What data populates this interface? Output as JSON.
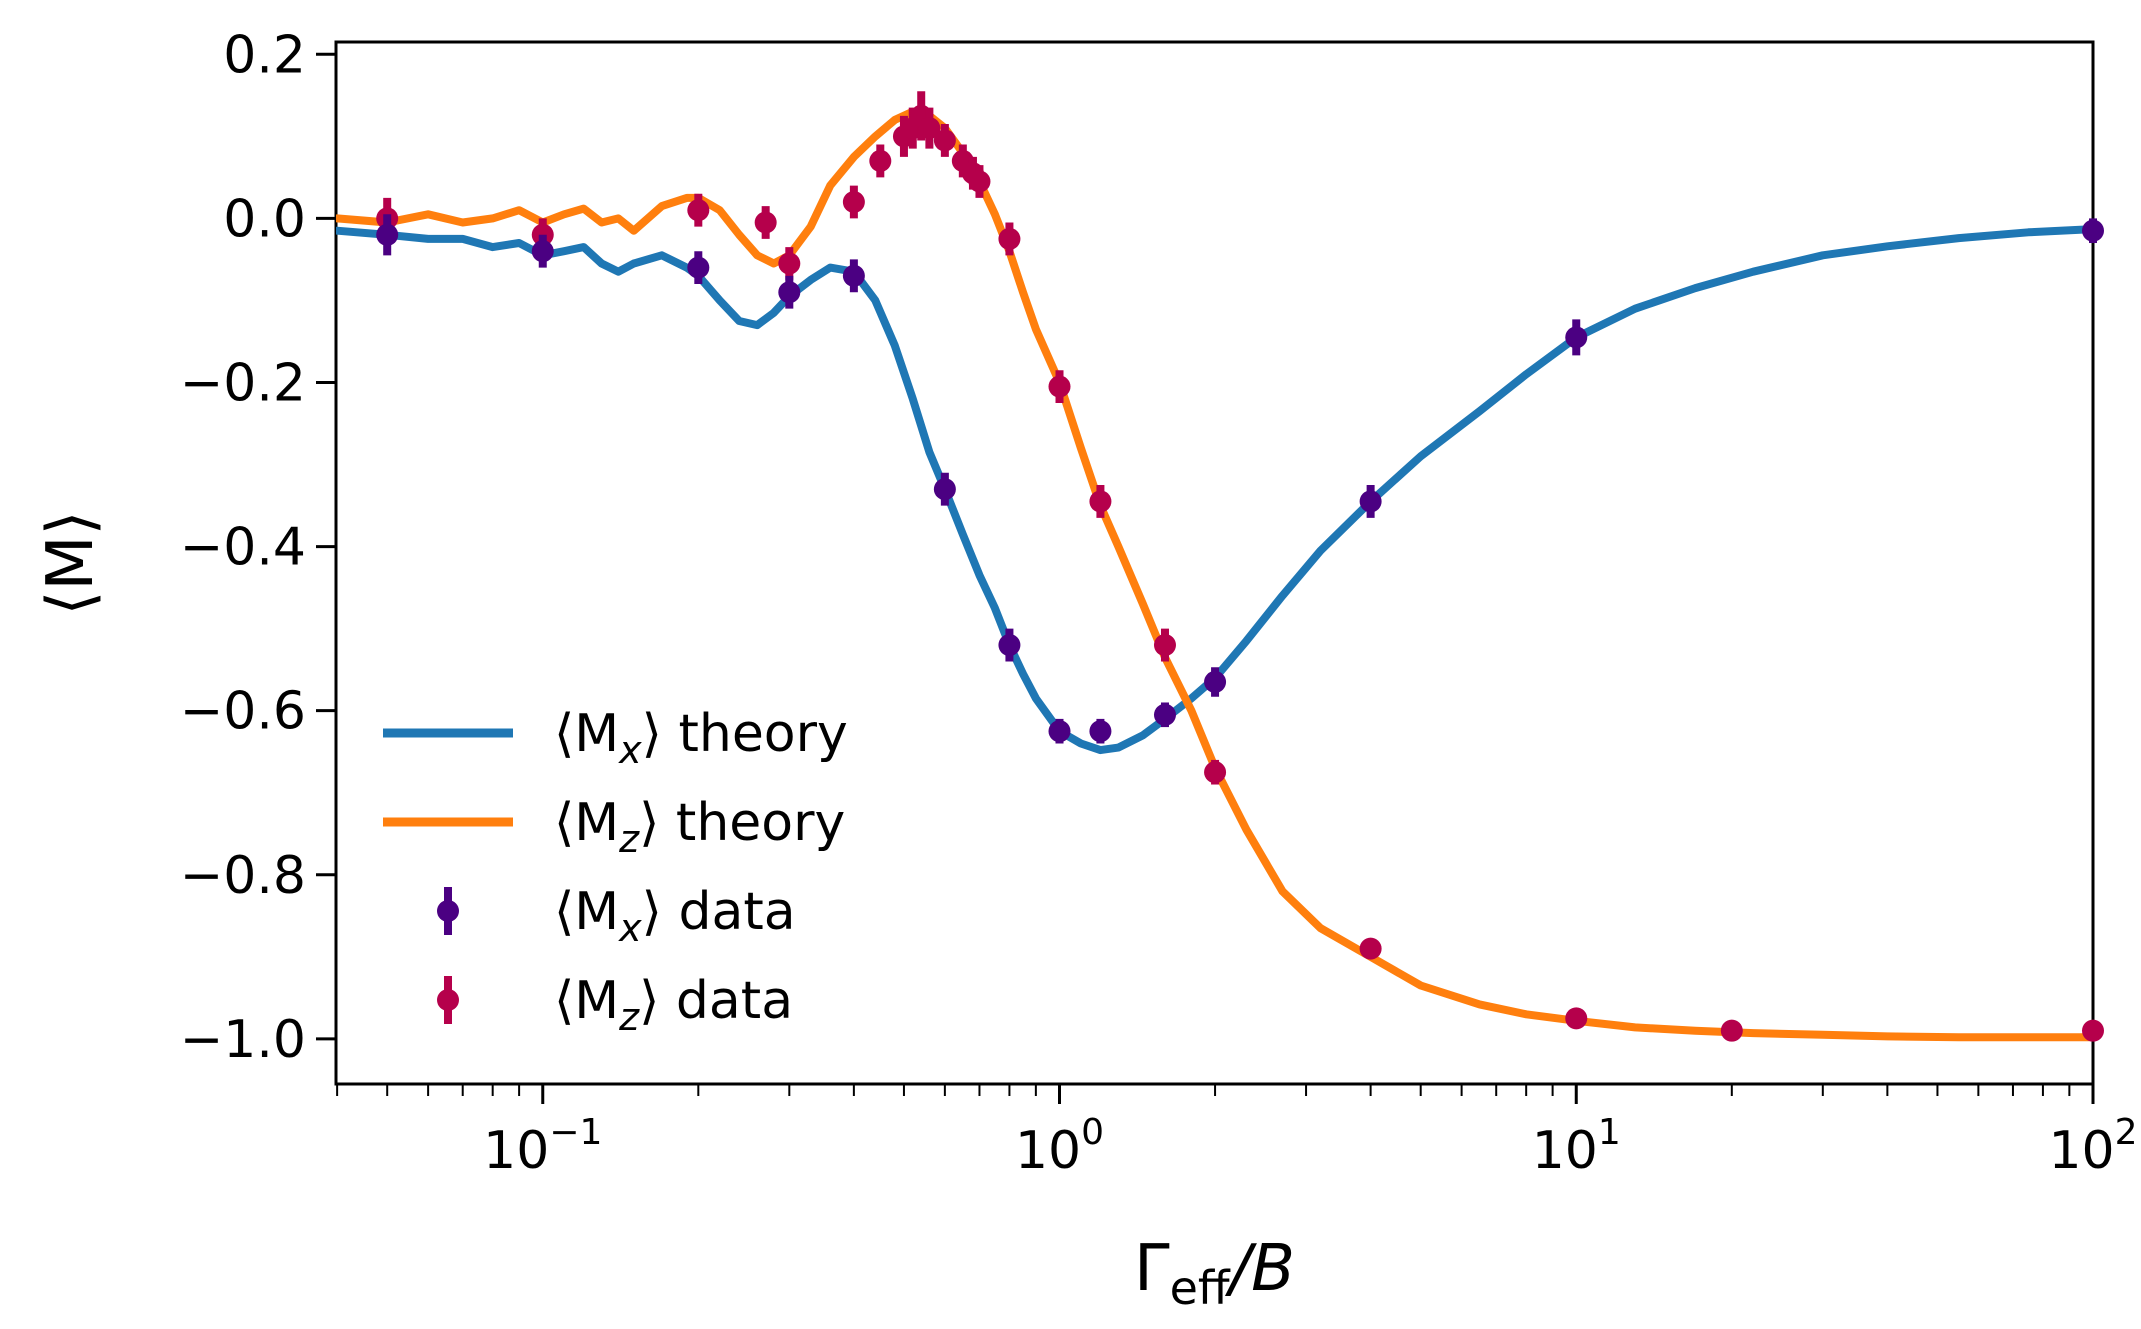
{
  "chart_data": {
    "type": "line",
    "xscale": "log",
    "xlim": [
      0.0398,
      100
    ],
    "ylim": [
      -1.055,
      0.215
    ],
    "xlabel": {
      "main": "Γ",
      "sub": "eff",
      "tail": "/B"
    },
    "ylabel": "⟨M⟩",
    "x_ticks": [
      {
        "base": "10",
        "exp": "−1",
        "value": 0.1
      },
      {
        "base": "10",
        "exp": "0",
        "value": 1
      },
      {
        "base": "10",
        "exp": "1",
        "value": 10
      },
      {
        "base": "10",
        "exp": "2",
        "value": 100
      }
    ],
    "y_ticks": [
      {
        "label": "0.2",
        "value": 0.2
      },
      {
        "label": "0.0",
        "value": 0.0
      },
      {
        "label": "−0.2",
        "value": -0.2
      },
      {
        "label": "−0.4",
        "value": -0.4
      },
      {
        "label": "−0.6",
        "value": -0.6
      },
      {
        "label": "−0.8",
        "value": -0.8
      },
      {
        "label": "−1.0",
        "value": -1.0
      }
    ],
    "grid": false,
    "legend_position": "lower-left",
    "colors": {
      "mx_theory": "#1f77b4",
      "mz_theory": "#ff7f0e",
      "mx_data": "#4b0082",
      "mz_data": "#b5004b"
    },
    "series": [
      {
        "name": "⟨M_x⟩ theory",
        "legend": {
          "pre": "⟨M",
          "sub": "x",
          "post": "⟩ theory"
        },
        "kind": "line",
        "x": [
          0.04,
          0.05,
          0.06,
          0.07,
          0.08,
          0.09,
          0.1,
          0.11,
          0.12,
          0.13,
          0.14,
          0.15,
          0.17,
          0.19,
          0.2,
          0.22,
          0.24,
          0.26,
          0.28,
          0.3,
          0.33,
          0.36,
          0.4,
          0.44,
          0.48,
          0.52,
          0.56,
          0.6,
          0.65,
          0.7,
          0.75,
          0.8,
          0.85,
          0.9,
          1.0,
          1.1,
          1.2,
          1.3,
          1.45,
          1.6,
          1.8,
          2.0,
          2.3,
          2.7,
          3.2,
          4.0,
          5.0,
          6.5,
          8.0,
          10.0,
          13.0,
          17.0,
          22.0,
          30.0,
          40.0,
          55.0,
          75.0,
          100.0
        ],
        "y": [
          -0.015,
          -0.02,
          -0.025,
          -0.025,
          -0.035,
          -0.03,
          -0.045,
          -0.04,
          -0.035,
          -0.055,
          -0.065,
          -0.055,
          -0.045,
          -0.06,
          -0.07,
          -0.1,
          -0.125,
          -0.13,
          -0.115,
          -0.095,
          -0.075,
          -0.06,
          -0.065,
          -0.1,
          -0.155,
          -0.22,
          -0.285,
          -0.33,
          -0.385,
          -0.435,
          -0.475,
          -0.52,
          -0.555,
          -0.585,
          -0.625,
          -0.64,
          -0.648,
          -0.645,
          -0.63,
          -0.61,
          -0.585,
          -0.56,
          -0.515,
          -0.46,
          -0.405,
          -0.345,
          -0.29,
          -0.235,
          -0.19,
          -0.145,
          -0.11,
          -0.085,
          -0.065,
          -0.045,
          -0.034,
          -0.024,
          -0.017,
          -0.013
        ]
      },
      {
        "name": "⟨M_z⟩ theory",
        "legend": {
          "pre": "⟨M",
          "sub": "z",
          "post": "⟩ theory"
        },
        "kind": "line",
        "x": [
          0.04,
          0.05,
          0.06,
          0.07,
          0.08,
          0.09,
          0.1,
          0.11,
          0.12,
          0.13,
          0.14,
          0.15,
          0.17,
          0.19,
          0.2,
          0.22,
          0.24,
          0.26,
          0.28,
          0.3,
          0.33,
          0.36,
          0.4,
          0.44,
          0.48,
          0.52,
          0.56,
          0.6,
          0.65,
          0.7,
          0.75,
          0.8,
          0.85,
          0.9,
          1.0,
          1.1,
          1.2,
          1.3,
          1.45,
          1.6,
          1.8,
          2.0,
          2.3,
          2.7,
          3.2,
          4.0,
          5.0,
          6.5,
          8.0,
          10.0,
          13.0,
          17.0,
          22.0,
          30.0,
          40.0,
          55.0,
          75.0,
          100.0
        ],
        "y": [
          0.0,
          -0.005,
          0.005,
          -0.005,
          0.0,
          0.01,
          -0.005,
          0.005,
          0.012,
          -0.005,
          0.0,
          -0.015,
          0.015,
          0.025,
          0.025,
          0.01,
          -0.02,
          -0.045,
          -0.055,
          -0.045,
          -0.01,
          0.04,
          0.075,
          0.1,
          0.12,
          0.13,
          0.125,
          0.11,
          0.08,
          0.045,
          0.005,
          -0.04,
          -0.09,
          -0.135,
          -0.2,
          -0.28,
          -0.35,
          -0.4,
          -0.47,
          -0.535,
          -0.6,
          -0.67,
          -0.745,
          -0.82,
          -0.865,
          -0.9,
          -0.935,
          -0.958,
          -0.97,
          -0.978,
          -0.986,
          -0.99,
          -0.993,
          -0.995,
          -0.997,
          -0.998,
          -0.998,
          -0.998
        ]
      },
      {
        "name": "⟨M_x⟩ data",
        "legend": {
          "pre": "⟨M",
          "sub": "x",
          "post": "⟩ data"
        },
        "kind": "errorbar",
        "x": [
          0.05,
          0.1,
          0.2,
          0.3,
          0.4,
          0.6,
          0.8,
          1.0,
          1.2,
          1.6,
          2.0,
          4.0,
          10.0,
          100.0
        ],
        "y": [
          -0.02,
          -0.04,
          -0.06,
          -0.09,
          -0.07,
          -0.33,
          -0.52,
          -0.625,
          -0.625,
          -0.605,
          -0.565,
          -0.345,
          -0.145,
          -0.015
        ],
        "err": [
          0.025,
          0.02,
          0.02,
          0.02,
          0.02,
          0.02,
          0.02,
          0.015,
          0.015,
          0.015,
          0.018,
          0.02,
          0.022,
          0.015
        ]
      },
      {
        "name": "⟨M_z⟩ data",
        "legend": {
          "pre": "⟨M",
          "sub": "z",
          "post": "⟩ data"
        },
        "kind": "errorbar",
        "x": [
          0.05,
          0.1,
          0.2,
          0.27,
          0.3,
          0.4,
          0.45,
          0.5,
          0.52,
          0.54,
          0.56,
          0.6,
          0.65,
          0.68,
          0.7,
          0.8,
          1.0,
          1.2,
          1.6,
          2.0,
          4.0,
          10.0,
          20.0,
          100.0
        ],
        "y": [
          0.0,
          -0.02,
          0.01,
          -0.005,
          -0.055,
          0.02,
          0.07,
          0.1,
          0.11,
          0.125,
          0.11,
          0.095,
          0.07,
          0.055,
          0.045,
          -0.025,
          -0.205,
          -0.345,
          -0.52,
          -0.675,
          -0.89,
          -0.975,
          -0.99,
          -0.99
        ],
        "err": [
          0.025,
          0.02,
          0.02,
          0.02,
          0.02,
          0.02,
          0.02,
          0.025,
          0.025,
          0.03,
          0.025,
          0.02,
          0.02,
          0.02,
          0.02,
          0.02,
          0.02,
          0.02,
          0.02,
          0.015,
          0.01,
          0.008,
          0.006,
          0.006
        ]
      }
    ]
  }
}
